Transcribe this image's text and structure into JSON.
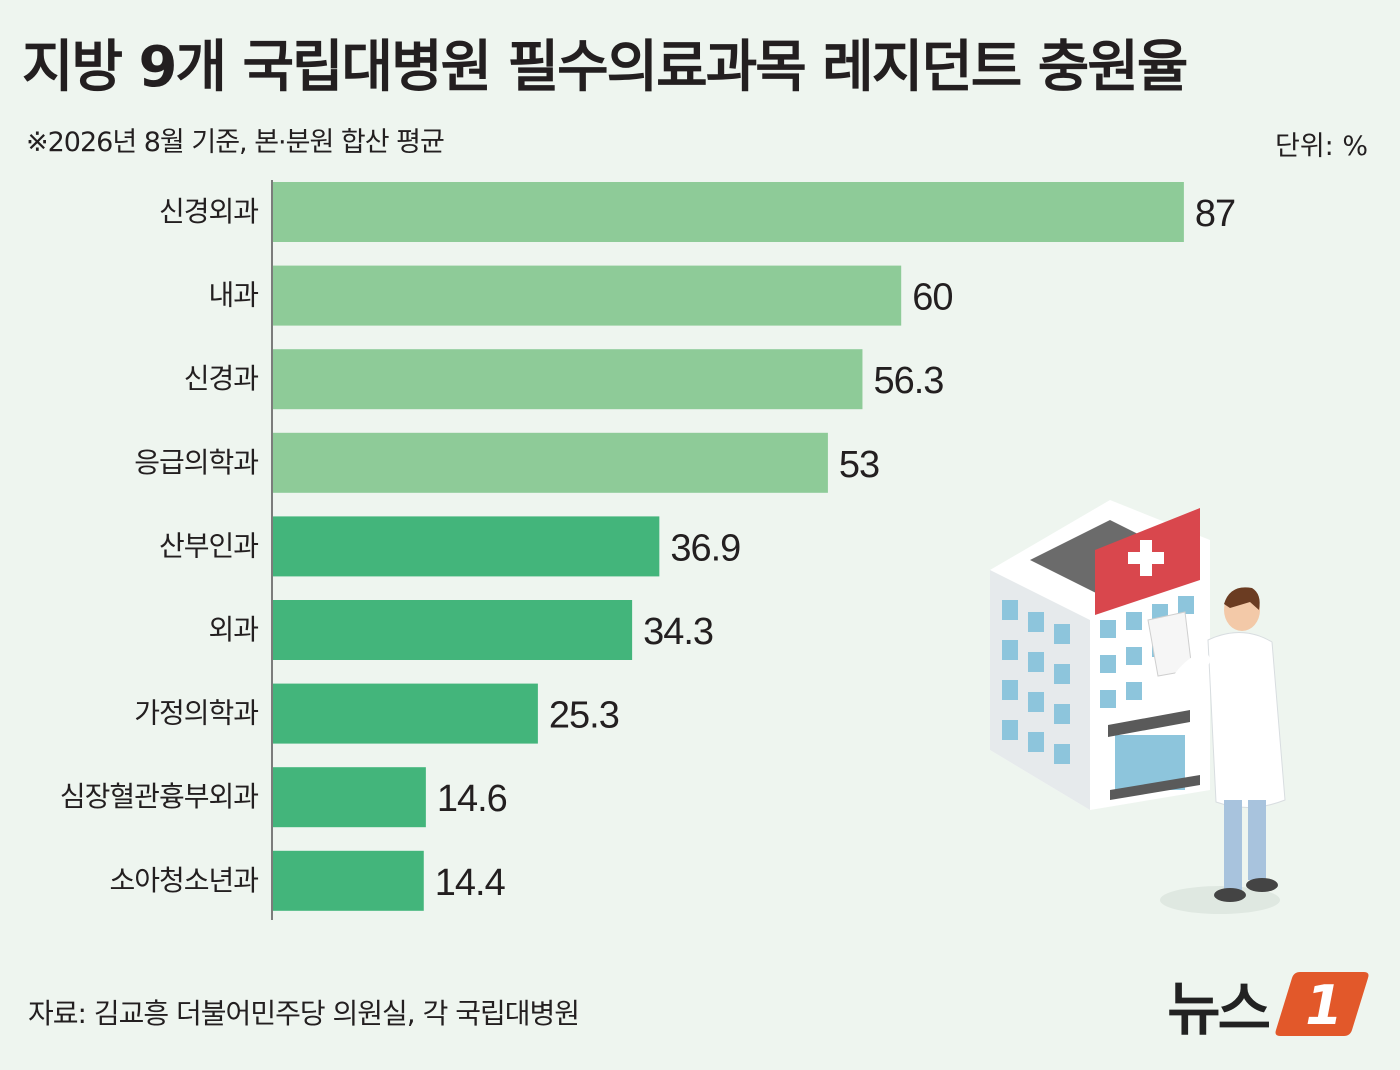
{
  "header": {
    "title": "지방 9개 국립대병원 필수의료과목 레지던트 충원율",
    "subtitle": "※2026년 8월 기준, 본·분원 합산 평균",
    "unit": "단위: %"
  },
  "footer": {
    "source": "자료: 김교흥 더불어민주당 의원실, 각 국립대병원",
    "logo_text": "뉴스",
    "logo_mark": "1"
  },
  "colors": {
    "light_bar": "#8ecb98",
    "dark_bar": "#43b57b",
    "background": "#eef5ef",
    "logo_accent": "#e2582a"
  },
  "chart_data": {
    "type": "bar",
    "orientation": "horizontal",
    "categories": [
      "신경외과",
      "내과",
      "신경과",
      "응급의학과",
      "산부인과",
      "외과",
      "가정의학과",
      "심장혈관흉부외과",
      "소아청소년과"
    ],
    "values": [
      87,
      60,
      56.3,
      53,
      36.9,
      34.3,
      25.3,
      14.6,
      14.4
    ],
    "value_labels": [
      "87",
      "60",
      "56.3",
      "53",
      "36.9",
      "34.3",
      "25.3",
      "14.6",
      "14.4"
    ],
    "bar_colors": [
      "#8ecb98",
      "#8ecb98",
      "#8ecb98",
      "#8ecb98",
      "#43b57b",
      "#43b57b",
      "#43b57b",
      "#43b57b",
      "#43b57b"
    ],
    "xlim": [
      0,
      100
    ],
    "grid": false,
    "title": "지방 9개 국립대병원 필수의료과목 레지던트 충원율",
    "unit": "%"
  }
}
